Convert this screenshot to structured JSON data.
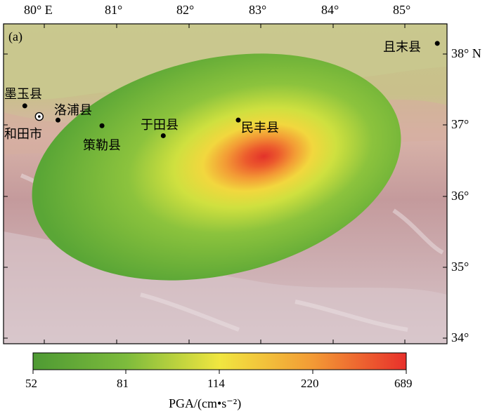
{
  "panel_label": "(a)",
  "x_ticks": [
    {
      "label": "80° E"
    },
    {
      "label": "81°"
    },
    {
      "label": "82°"
    },
    {
      "label": "83°"
    },
    {
      "label": "84°"
    },
    {
      "label": "85°"
    }
  ],
  "y_ticks": [
    {
      "label": "38° N"
    },
    {
      "label": "37°"
    },
    {
      "label": "36°"
    },
    {
      "label": "35°"
    },
    {
      "label": "34°"
    }
  ],
  "cities": [
    {
      "name": "且末县",
      "lon": 85.45,
      "lat": 38.15
    },
    {
      "name": "墨玉县",
      "lon": 79.73,
      "lat": 37.27
    },
    {
      "name": "洛浦县",
      "lon": 80.19,
      "lat": 37.07
    },
    {
      "name": "和田市",
      "lon": 79.93,
      "lat": 37.12,
      "symbol": "circle-dot"
    },
    {
      "name": "策勒县",
      "lon": 80.8,
      "lat": 36.99
    },
    {
      "name": "于田县",
      "lon": 81.65,
      "lat": 36.85
    },
    {
      "name": "民丰县",
      "lon": 82.69,
      "lat": 37.07
    }
  ],
  "colorbar": {
    "ticks": [
      "52",
      "81",
      "114",
      "220",
      "689"
    ],
    "title": "PGA/(cm•s⁻²)",
    "colors": [
      "#4f9e34",
      "#8cc33d",
      "#f2e640",
      "#f39a35",
      "#e8302b"
    ]
  }
}
